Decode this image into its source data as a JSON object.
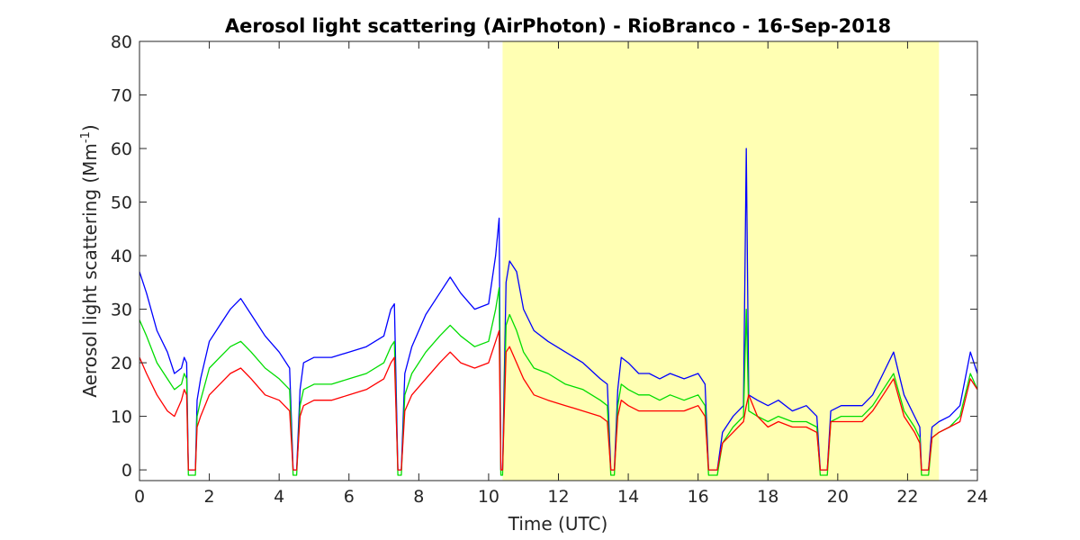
{
  "chart_data": {
    "type": "line",
    "title": "Aerosol light scattering (AirPhoton) - RioBranco - 16-Sep-2018",
    "xlabel": "Time (UTC)",
    "ylabel": {
      "prefix": "Aerosol light scattering (Mm",
      "superscript": "-1",
      "suffix": ")"
    },
    "xlim": [
      0,
      24
    ],
    "ylim": [
      -2,
      80
    ],
    "xticks": [
      0,
      2,
      4,
      6,
      8,
      10,
      12,
      14,
      16,
      18,
      20,
      22,
      24
    ],
    "yticks": [
      0,
      10,
      20,
      30,
      40,
      50,
      60,
      70,
      80
    ],
    "grid": false,
    "legend": "none",
    "shaded_region": {
      "x": [
        10.4,
        22.9
      ],
      "color": "#ffffb3"
    },
    "series": [
      {
        "color": "#0000ff",
        "x": [
          0,
          0.2,
          0.5,
          0.8,
          1.0,
          1.2,
          1.28,
          1.35,
          1.4,
          1.45,
          1.6,
          1.65,
          1.75,
          2.0,
          2.3,
          2.6,
          2.9,
          3.2,
          3.6,
          4.0,
          4.3,
          4.4,
          4.5,
          4.6,
          4.7,
          5.0,
          5.5,
          6.0,
          6.5,
          7.0,
          7.2,
          7.3,
          7.4,
          7.5,
          7.6,
          7.8,
          8.2,
          8.6,
          8.9,
          9.2,
          9.6,
          10.0,
          10.2,
          10.3,
          10.35,
          10.4,
          10.5,
          10.6,
          10.8,
          11.0,
          11.3,
          11.7,
          12.2,
          12.7,
          13.2,
          13.4,
          13.5,
          13.6,
          13.7,
          13.8,
          14.0,
          14.3,
          14.6,
          14.9,
          15.2,
          15.6,
          16.0,
          16.2,
          16.3,
          16.4,
          16.55,
          16.7,
          17.0,
          17.3,
          17.38,
          17.45,
          17.7,
          18.0,
          18.3,
          18.7,
          19.1,
          19.4,
          19.5,
          19.6,
          19.7,
          19.8,
          20.1,
          20.4,
          20.7,
          21.0,
          21.3,
          21.6,
          21.9,
          22.2,
          22.35,
          22.4,
          22.5,
          22.6,
          22.7,
          22.9,
          23.2,
          23.5,
          23.8,
          24.0
        ],
        "y": [
          37,
          33,
          26,
          22,
          18,
          19,
          21,
          20,
          0,
          0,
          0,
          13,
          17,
          24,
          27,
          30,
          32,
          29,
          25,
          22,
          19,
          0,
          0,
          15,
          20,
          21,
          21,
          22,
          23,
          25,
          30,
          31,
          0,
          0,
          18,
          23,
          29,
          33,
          36,
          33,
          30,
          31,
          40,
          47,
          0,
          0,
          35,
          39,
          37,
          30,
          26,
          24,
          22,
          20,
          17,
          16,
          0,
          0,
          15,
          21,
          20,
          18,
          18,
          17,
          18,
          17,
          18,
          16,
          0,
          0,
          0,
          7,
          10,
          12,
          60,
          14,
          13,
          12,
          13,
          11,
          12,
          10,
          0,
          0,
          0,
          11,
          12,
          12,
          12,
          14,
          18,
          22,
          14,
          10,
          8,
          0,
          0,
          0,
          8,
          9,
          10,
          12,
          22,
          18
        ]
      },
      {
        "color": "#00dd00",
        "x": [
          0,
          0.2,
          0.5,
          0.8,
          1.0,
          1.2,
          1.28,
          1.35,
          1.4,
          1.45,
          1.6,
          1.65,
          1.75,
          2.0,
          2.3,
          2.6,
          2.9,
          3.2,
          3.6,
          4.0,
          4.3,
          4.4,
          4.5,
          4.6,
          4.7,
          5.0,
          5.5,
          6.0,
          6.5,
          7.0,
          7.2,
          7.3,
          7.4,
          7.5,
          7.6,
          7.8,
          8.2,
          8.6,
          8.9,
          9.2,
          9.6,
          10.0,
          10.2,
          10.3,
          10.35,
          10.4,
          10.5,
          10.6,
          10.8,
          11.0,
          11.3,
          11.7,
          12.2,
          12.7,
          13.2,
          13.4,
          13.5,
          13.6,
          13.7,
          13.8,
          14.0,
          14.3,
          14.6,
          14.9,
          15.2,
          15.6,
          16.0,
          16.2,
          16.3,
          16.4,
          16.55,
          16.7,
          17.0,
          17.3,
          17.38,
          17.45,
          17.7,
          18.0,
          18.3,
          18.7,
          19.1,
          19.4,
          19.5,
          19.6,
          19.7,
          19.8,
          20.1,
          20.4,
          20.7,
          21.0,
          21.3,
          21.6,
          21.9,
          22.2,
          22.35,
          22.4,
          22.5,
          22.6,
          22.7,
          22.9,
          23.2,
          23.5,
          23.8,
          24.0
        ],
        "y": [
          28,
          25,
          20,
          17,
          15,
          16,
          18,
          17,
          -1,
          -1,
          -1,
          10,
          13,
          19,
          21,
          23,
          24,
          22,
          19,
          17,
          15,
          -1,
          -1,
          12,
          15,
          16,
          16,
          17,
          18,
          20,
          23,
          24,
          -1,
          -1,
          14,
          18,
          22,
          25,
          27,
          25,
          23,
          24,
          30,
          34,
          -1,
          -1,
          27,
          29,
          26,
          22,
          19,
          18,
          16,
          15,
          13,
          12,
          -1,
          -1,
          12,
          16,
          15,
          14,
          14,
          13,
          14,
          13,
          14,
          12,
          -1,
          -1,
          -1,
          5,
          8,
          10,
          30,
          11,
          10,
          9,
          10,
          9,
          9,
          8,
          -1,
          -1,
          -1,
          9,
          10,
          10,
          10,
          12,
          15,
          18,
          11,
          8,
          6,
          -1,
          -1,
          -1,
          6,
          7,
          8,
          10,
          18,
          15
        ]
      },
      {
        "color": "#ff0000",
        "x": [
          0,
          0.2,
          0.5,
          0.8,
          1.0,
          1.2,
          1.28,
          1.35,
          1.4,
          1.45,
          1.6,
          1.65,
          1.75,
          2.0,
          2.3,
          2.6,
          2.9,
          3.2,
          3.6,
          4.0,
          4.3,
          4.4,
          4.5,
          4.6,
          4.7,
          5.0,
          5.5,
          6.0,
          6.5,
          7.0,
          7.2,
          7.3,
          7.4,
          7.5,
          7.6,
          7.8,
          8.2,
          8.6,
          8.9,
          9.2,
          9.6,
          10.0,
          10.2,
          10.3,
          10.35,
          10.4,
          10.5,
          10.6,
          10.8,
          11.0,
          11.3,
          11.7,
          12.2,
          12.7,
          13.2,
          13.4,
          13.5,
          13.6,
          13.7,
          13.8,
          14.0,
          14.3,
          14.6,
          14.9,
          15.2,
          15.6,
          16.0,
          16.2,
          16.3,
          16.4,
          16.55,
          16.7,
          17.0,
          17.3,
          17.38,
          17.45,
          17.7,
          18.0,
          18.3,
          18.7,
          19.1,
          19.4,
          19.5,
          19.6,
          19.7,
          19.8,
          20.1,
          20.4,
          20.7,
          21.0,
          21.3,
          21.6,
          21.9,
          22.2,
          22.35,
          22.4,
          22.5,
          22.6,
          22.7,
          22.9,
          23.2,
          23.5,
          23.8,
          24.0
        ],
        "y": [
          21,
          18,
          14,
          11,
          10,
          13,
          15,
          14,
          0,
          0,
          0,
          8,
          10,
          14,
          16,
          18,
          19,
          17,
          14,
          13,
          11,
          0,
          0,
          10,
          12,
          13,
          13,
          14,
          15,
          17,
          20,
          21,
          0,
          0,
          11,
          14,
          17,
          20,
          22,
          20,
          19,
          20,
          24,
          26,
          0,
          0,
          22,
          23,
          20,
          17,
          14,
          13,
          12,
          11,
          10,
          9,
          0,
          0,
          10,
          13,
          12,
          11,
          11,
          11,
          11,
          11,
          12,
          10,
          0,
          0,
          0,
          5,
          7,
          9,
          12,
          14,
          10,
          8,
          9,
          8,
          8,
          7,
          0,
          0,
          0,
          9,
          9,
          9,
          9,
          11,
          14,
          17,
          10,
          7,
          5,
          0,
          0,
          0,
          6,
          7,
          8,
          9,
          17,
          15
        ]
      }
    ]
  }
}
